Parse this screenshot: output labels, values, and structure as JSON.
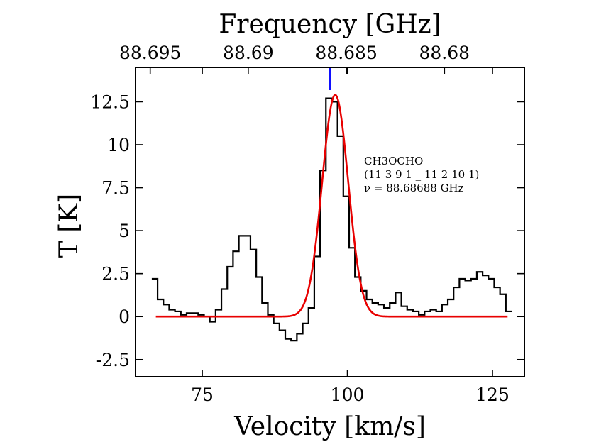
{
  "chart_data": {
    "type": "line",
    "xlabel": "Velocity [km/s]",
    "ylabel": "T [K]",
    "top_xlabel": "Frequency [GHz]",
    "xlim": [
      63.5,
      130.5
    ],
    "ylim": [
      -3.5,
      14.5
    ],
    "x_ticks": [
      75,
      100,
      125
    ],
    "x_tick_labels": [
      "75",
      "100",
      "125"
    ],
    "y_ticks": [
      -2.5,
      0,
      2.5,
      5,
      7.5,
      10,
      12.5
    ],
    "y_tick_labels": [
      "-2.5",
      "0",
      "2.5",
      "5",
      "7.5",
      "10",
      "12.5"
    ],
    "top_ticks_velocity": [
      66.03,
      82.92,
      99.83,
      116.72
    ],
    "top_tick_labels": [
      "88.695",
      "88.69",
      "88.685",
      "88.68"
    ],
    "grid": false,
    "line_marker_velocity": 97.0,
    "annotations": [
      "CH3OCHO",
      "(11 3 9 1 _ 11 2 10 1)",
      "ν = 88.68688 GHz"
    ],
    "series": [
      {
        "kind": "step",
        "color": "#000000",
        "x": [
          66.8,
          67.8,
          68.8,
          69.8,
          70.8,
          71.8,
          72.8,
          73.8,
          74.8,
          75.8,
          76.8,
          77.8,
          78.8,
          79.8,
          80.8,
          81.8,
          82.8,
          83.8,
          84.8,
          85.8,
          86.8,
          87.8,
          88.8,
          89.8,
          90.8,
          91.8,
          92.8,
          93.8,
          94.8,
          95.8,
          96.8,
          97.8,
          98.8,
          99.8,
          100.8,
          101.8,
          102.8,
          103.8,
          104.8,
          105.8,
          106.8,
          107.8,
          108.8,
          109.8,
          110.8,
          111.8,
          112.8,
          113.8,
          114.8,
          115.8,
          116.8,
          117.8,
          118.8,
          119.8,
          120.8,
          121.8,
          122.8,
          123.8,
          124.8,
          125.8,
          126.8,
          127.8
        ],
        "y": [
          2.2,
          1.0,
          0.7,
          0.4,
          0.3,
          0.1,
          0.2,
          0.2,
          0.1,
          0.0,
          -0.3,
          0.4,
          1.6,
          2.9,
          3.8,
          4.7,
          4.7,
          3.9,
          2.3,
          0.8,
          0.1,
          -0.4,
          -0.8,
          -1.3,
          -1.4,
          -1.0,
          -0.4,
          0.5,
          3.5,
          8.5,
          12.7,
          12.5,
          10.5,
          7.0,
          4.0,
          2.3,
          1.5,
          1.0,
          0.8,
          0.7,
          0.5,
          0.8,
          1.4,
          0.6,
          0.4,
          0.3,
          0.1,
          0.3,
          0.4,
          0.3,
          0.7,
          1.0,
          1.7,
          2.2,
          2.1,
          2.2,
          2.6,
          2.4,
          2.2,
          1.7,
          1.3,
          0.3
        ]
      },
      {
        "kind": "gaussian",
        "color": "#e80000",
        "amplitude": 12.9,
        "center": 97.9,
        "sigma": 2.25,
        "x_range": [
          67.0,
          127.6
        ]
      }
    ]
  }
}
